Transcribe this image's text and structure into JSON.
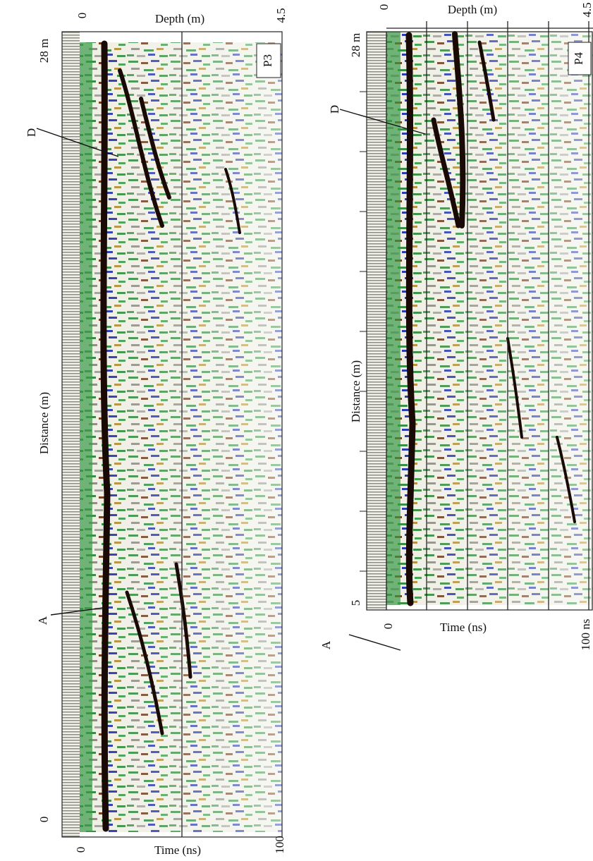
{
  "panels": [
    {
      "label": "P3",
      "depth_axis": {
        "title": "Depth (m)",
        "ticks": [
          "0",
          "4.5"
        ]
      },
      "time_axis": {
        "title": "Time (ns)",
        "ticks": [
          "0",
          "100"
        ]
      },
      "distance_axis": {
        "title": "Distance (m)",
        "ticks": [
          "28 m",
          "0"
        ]
      },
      "annotations": [
        "D",
        "A"
      ]
    },
    {
      "label": "P4",
      "depth_axis": {
        "title": "Depth (m)",
        "ticks": [
          "0",
          "4.5"
        ]
      },
      "time_axis": {
        "title": "Time (ns)",
        "ticks": [
          "0",
          "100 ns"
        ]
      },
      "distance_axis": {
        "title": "Distance (m)",
        "ticks": [
          "28 m",
          "5"
        ]
      },
      "annotations": [
        "D",
        "A"
      ]
    }
  ]
}
